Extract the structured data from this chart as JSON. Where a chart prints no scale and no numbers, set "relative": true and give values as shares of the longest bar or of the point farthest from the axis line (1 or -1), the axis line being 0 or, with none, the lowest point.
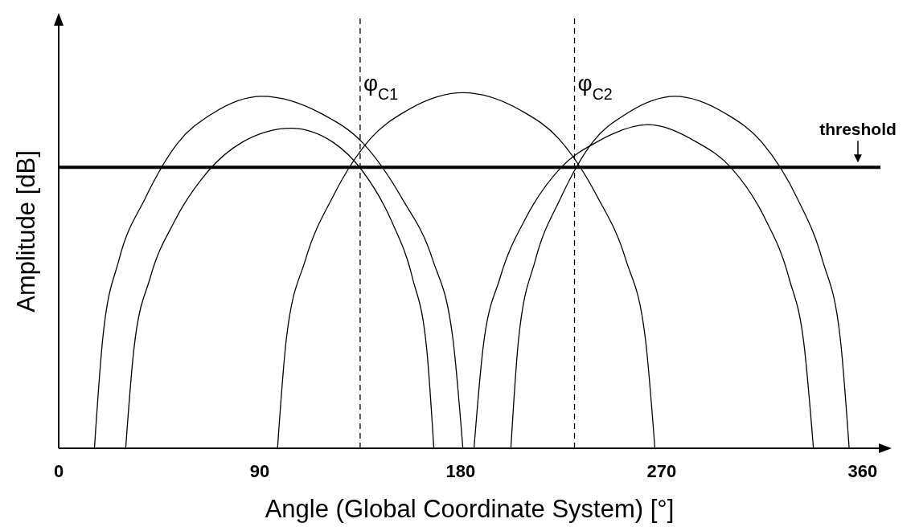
{
  "chart_data": {
    "type": "line",
    "relative": true,
    "xlabel": "Angle (Global Coordinate System) [°]",
    "ylabel": "Amplitude [dB]",
    "xlim": [
      0,
      368
    ],
    "xticks": [
      0,
      90,
      180,
      270,
      360
    ],
    "grid": false,
    "marker": "none",
    "line_style": "solid",
    "series": [
      {
        "color": "#000000",
        "x": [
          16,
          19.75,
          27,
          38.5,
          53.5,
          68.5,
          91,
          118,
          136,
          154,
          167.5,
          176.5,
          181
        ],
        "values": [
          0,
          0.31,
          0.53,
          0.7,
          0.86,
          0.94,
          0.99,
          0.94,
          0.86,
          0.7,
          0.53,
          0.31,
          0
        ]
      },
      {
        "color": "#000000",
        "x": [
          30,
          33.7,
          41,
          52,
          67,
          82,
          104,
          123,
          136,
          149,
          158.4,
          164.8,
          168
        ],
        "values": [
          0,
          0.28,
          0.48,
          0.64,
          0.78,
          0.86,
          0.9,
          0.86,
          0.78,
          0.64,
          0.48,
          0.28,
          0
        ]
      },
      {
        "color": "#000000",
        "x": [
          98,
          102,
          110.5,
          123,
          139.5,
          156,
          181,
          207,
          224,
          241,
          254,
          262.7,
          267
        ],
        "values": [
          0,
          0.31,
          0.53,
          0.71,
          0.87,
          0.95,
          1,
          0.95,
          0.87,
          0.71,
          0.53,
          0.31,
          0
        ]
      },
      {
        "color": "#000000",
        "x": [
          186,
          190,
          197.7,
          209.4,
          225,
          240.6,
          264,
          286,
          301,
          316,
          327,
          334,
          338
        ],
        "values": [
          0,
          0.28,
          0.48,
          0.65,
          0.79,
          0.86,
          0.91,
          0.86,
          0.79,
          0.65,
          0.48,
          0.28,
          0
        ]
      },
      {
        "color": "#000000",
        "x": [
          202.5,
          206,
          213.5,
          224.5,
          239,
          254,
          276,
          299,
          315,
          331,
          342,
          350,
          354
        ],
        "values": [
          0,
          0.31,
          0.53,
          0.7,
          0.86,
          0.94,
          0.99,
          0.94,
          0.86,
          0.7,
          0.53,
          0.31,
          0
        ]
      }
    ],
    "ref_lines": [
      {
        "axis": "x",
        "value": 135,
        "label": "φ$_{C1}$",
        "color": "#000000",
        "line_style": "dashed"
      },
      {
        "axis": "x",
        "value": 231,
        "label": "φ$_{C2}$",
        "color": "#000000",
        "line_style": "dashed"
      },
      {
        "axis": "y",
        "value": 0.79,
        "label": "threshold",
        "color": "#000000",
        "line_style": "solid"
      }
    ]
  }
}
